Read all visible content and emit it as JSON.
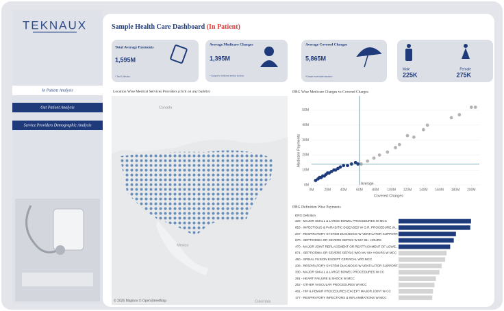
{
  "sidebar": {
    "logo": "TEKNAUX",
    "nav": [
      "In Patient Analysis",
      "Out Patient Analysis",
      "Service Providers Demographic Analysis"
    ]
  },
  "header": {
    "title": "Sample Health Care Dashboard",
    "subtitle": "(In Patient)"
  },
  "kpis": [
    {
      "label": "Total Average Payments",
      "value": "1,595M",
      "note": "* Total Collection"
    },
    {
      "label": "Average Medicare Charges",
      "value": "1,395M",
      "note": "* Charges for additional medical facilities"
    },
    {
      "label": "Average Covered Charges",
      "value": "5,865M",
      "note": "*Charges: eased under insurance"
    }
  ],
  "gender": {
    "male_label": "Male",
    "male_value": "225K",
    "female_label": "Female",
    "female_value": "275K"
  },
  "map": {
    "title": "Location Wise Medical Services Providers",
    "hint": "(click on any bubble)",
    "labels": [
      "Canada",
      "Mexico",
      "Colombia"
    ],
    "credit": "© 2026 Mapbox © OpenStreetMap"
  },
  "chart_data": [
    {
      "type": "scatter",
      "title": "DRG Wise Medicare Charges vs Covered Charges",
      "x_label": "Covered Charges",
      "y_label": "Medicare Payments",
      "xlim": [
        0,
        210
      ],
      "ylim": [
        0,
        55
      ],
      "xticks": [
        {
          "value": 0,
          "label": "0M"
        },
        {
          "value": 20,
          "label": "20M"
        },
        {
          "value": 40,
          "label": "40M"
        },
        {
          "value": 60,
          "label": "60M"
        },
        {
          "value": 80,
          "label": "80M"
        },
        {
          "value": 100,
          "label": "100M"
        },
        {
          "value": 120,
          "label": "120M"
        },
        {
          "value": 140,
          "label": "140M"
        },
        {
          "value": 160,
          "label": "160M"
        },
        {
          "value": 180,
          "label": "180M"
        },
        {
          "value": 200,
          "label": "200M"
        }
      ],
      "yticks": [
        {
          "value": 0,
          "label": "0M"
        },
        {
          "value": 10,
          "label": "10M"
        },
        {
          "value": 20,
          "label": "20M"
        },
        {
          "value": 30,
          "label": "30M"
        },
        {
          "value": 40,
          "label": "40M"
        },
        {
          "value": 50,
          "label": "50M"
        }
      ],
      "reference": {
        "label": "Average",
        "x": 60,
        "y": 14
      },
      "series": [
        {
          "color": "#1f3a7a",
          "x": [
            5,
            8,
            10,
            12,
            14,
            16,
            18,
            20,
            22,
            25,
            28,
            30,
            33,
            36,
            40,
            45,
            50,
            55,
            58
          ],
          "y": [
            3,
            4,
            5,
            5,
            6,
            6,
            7,
            8,
            8,
            9,
            10,
            10,
            11,
            12,
            13,
            13,
            14,
            15,
            14
          ]
        },
        {
          "color": "#b7b2b2",
          "x": [
            62,
            70,
            78,
            85,
            95,
            105,
            110,
            120,
            128,
            140,
            145,
            175,
            185,
            200,
            205
          ],
          "y": [
            14,
            16,
            18,
            20,
            22,
            25,
            27,
            33,
            32,
            37,
            40,
            45,
            47,
            52,
            52
          ]
        }
      ]
    },
    {
      "type": "bar",
      "title": "DRG Definition Wise Payments",
      "column_header": "DRG Definition",
      "xlim": [
        0,
        105
      ],
      "categories": [
        "329 - MAJOR SMALL & LARGE BOWEL PROCEDURES W MCC",
        "853 - INFECTIOUS & PARASITIC DISEASES W O.R. PROCEDURE W...",
        "207 - RESPIRATORY SYSTEM DIAGNOSIS W VENTILATOR SUPPORT...",
        "870 - SEPTICEMIA OR SEVERE SEPSIS W MV 96+ HOURS",
        "470 - MAJOR JOINT REPLACEMENT OR REATTACHMENT OF LOWE...",
        "871 - SEPTICEMIA OR SEVERE SEPSIS W/O MV 96+ HOURS W MCC",
        "460 - SPINAL FUSION EXCEPT CERVICAL W/O MCC",
        "208 - RESPIRATORY SYSTEM DIAGNOSIS W VENTILATOR SUPPORT...",
        "330 - MAJOR SMALL & LARGE BOWEL PROCEDURES W CC",
        "291 - HEART FAILURE & SHOCK W MCC",
        "252 - OTHER VASCULAR PROCEDURES W MCC",
        "481 - HIP & FEMUR PROCEDURES EXCEPT MAJOR JOINT W CC",
        "177 - RESPIRATORY INFECTIONS & INFLAMMATIONS W MCC"
      ],
      "values": [
        101,
        100,
        80,
        77,
        72,
        67,
        65,
        60,
        57,
        52,
        50,
        48,
        47
      ],
      "colors": [
        "#1f3a7a",
        "#1f3a7a",
        "#1f3a7a",
        "#1f3a7a",
        "#1f3a7a",
        "#d4d4d4",
        "#d4d4d4",
        "#d4d4d4",
        "#d4d4d4",
        "#d4d4d4",
        "#d4d4d4",
        "#d4d4d4",
        "#d4d4d4"
      ]
    }
  ]
}
